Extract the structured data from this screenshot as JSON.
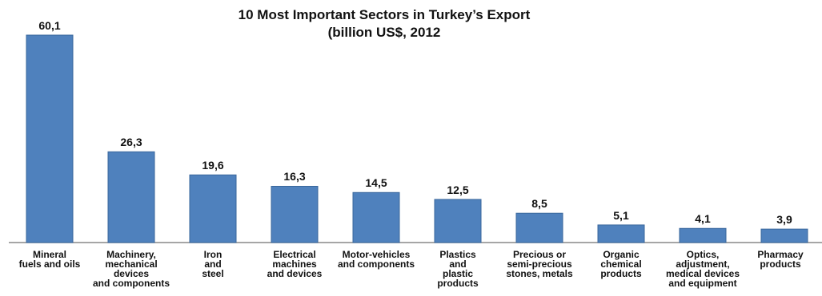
{
  "chart_data": {
    "type": "bar",
    "title": "10 Most Important Sectors in Turkey’s Export",
    "subtitle": "(billion US$, 2012",
    "categories": [
      "Mineral\nfuels and oils",
      "Machinery,\nmechanical\ndevices\nand components",
      "Iron\nand\nsteel",
      "Electrical\nmachines\nand devices",
      "Motor-vehicles\nand components",
      "Plastics\nand\nplastic\nproducts",
      "Precious or\nsemi-precious\nstones, metals",
      "Organic\nchemical\nproducts",
      "Optics,\nadjustment,\nmedical devices\nand equipment",
      "Pharmacy\nproducts"
    ],
    "values": [
      60.1,
      26.3,
      19.6,
      16.3,
      14.5,
      12.5,
      8.5,
      5.1,
      4.1,
      3.9
    ],
    "value_labels": [
      "60,1",
      "26,3",
      "19,6",
      "16,3",
      "14,5",
      "12,5",
      "8,5",
      "5,1",
      "4,1",
      "3,9"
    ],
    "color": "#4f81bd"
  }
}
